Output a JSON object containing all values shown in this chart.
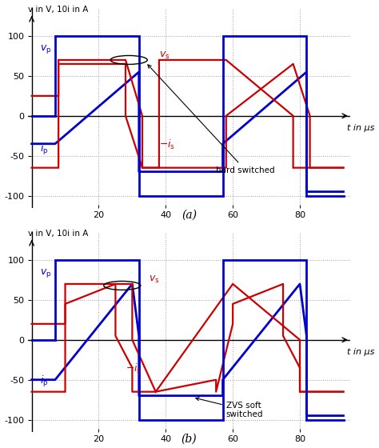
{
  "title_a": "(a)",
  "title_b": "(b)",
  "ylabel": "v in V, 10i in A",
  "xlabel": "t in μs",
  "ylim": [
    -115,
    135
  ],
  "xlim": [
    -1,
    95
  ],
  "yticks": [
    -100,
    -50,
    0,
    50,
    100
  ],
  "xticks": [
    20,
    40,
    60,
    80
  ],
  "blue_color": "#0000cc",
  "red_color": "#cc0000",
  "bg_color": "#ffffff",
  "grid_color": "#8888bb",
  "vp_a_t": [
    0,
    7,
    7,
    32,
    32,
    57,
    57,
    82,
    82,
    93
  ],
  "vp_a_v": [
    0,
    0,
    100,
    100,
    -100,
    -100,
    100,
    100,
    -100,
    -100
  ],
  "vs_a_t": [
    0,
    8,
    8,
    28,
    28,
    33,
    33,
    38,
    38,
    58,
    58,
    78,
    78,
    83,
    83,
    93
  ],
  "vs_a_v": [
    -65,
    -65,
    70,
    70,
    70,
    0,
    -65,
    -65,
    70,
    70,
    70,
    0,
    -65,
    -65,
    -65,
    -65
  ],
  "ip_a_t": [
    0,
    7,
    32,
    32,
    57,
    57,
    82,
    82,
    93
  ],
  "ip_a_v": [
    -35,
    -35,
    55,
    -70,
    -70,
    -35,
    55,
    -95,
    -95
  ],
  "is_a_t": [
    0,
    8,
    8,
    28,
    28,
    33,
    33,
    38,
    38,
    58,
    58,
    78,
    78,
    83,
    83,
    93
  ],
  "is_a_v": [
    25,
    25,
    65,
    65,
    0,
    -65,
    -65,
    -65,
    -65,
    -65,
    0,
    65,
    65,
    0,
    -65,
    -65
  ],
  "vp_b_t": [
    0,
    7,
    7,
    32,
    32,
    57,
    57,
    82,
    82,
    93
  ],
  "vp_b_v": [
    0,
    0,
    100,
    100,
    -100,
    -100,
    100,
    100,
    -100,
    -100
  ],
  "vs_b_t": [
    0,
    10,
    10,
    30,
    30,
    37,
    37,
    60,
    60,
    80,
    80,
    87,
    87,
    93
  ],
  "vs_b_v": [
    -65,
    -65,
    70,
    70,
    0,
    -65,
    -65,
    70,
    70,
    0,
    -65,
    -65,
    -65,
    -65
  ],
  "ip_b_t": [
    0,
    7,
    30,
    32,
    32,
    57,
    57,
    80,
    82,
    82,
    93
  ],
  "ip_b_v": [
    -50,
    -50,
    70,
    5,
    -70,
    -70,
    -50,
    70,
    5,
    -95,
    -95
  ],
  "is_b_t": [
    0,
    10,
    10,
    25,
    25,
    30,
    30,
    37,
    37,
    55,
    55,
    60,
    60,
    75,
    75,
    80,
    80,
    87,
    87,
    93
  ],
  "is_b_v": [
    20,
    20,
    45,
    70,
    5,
    -35,
    -65,
    -65,
    -65,
    -50,
    -65,
    20,
    45,
    70,
    5,
    -35,
    -65,
    -65,
    -65,
    -65
  ]
}
